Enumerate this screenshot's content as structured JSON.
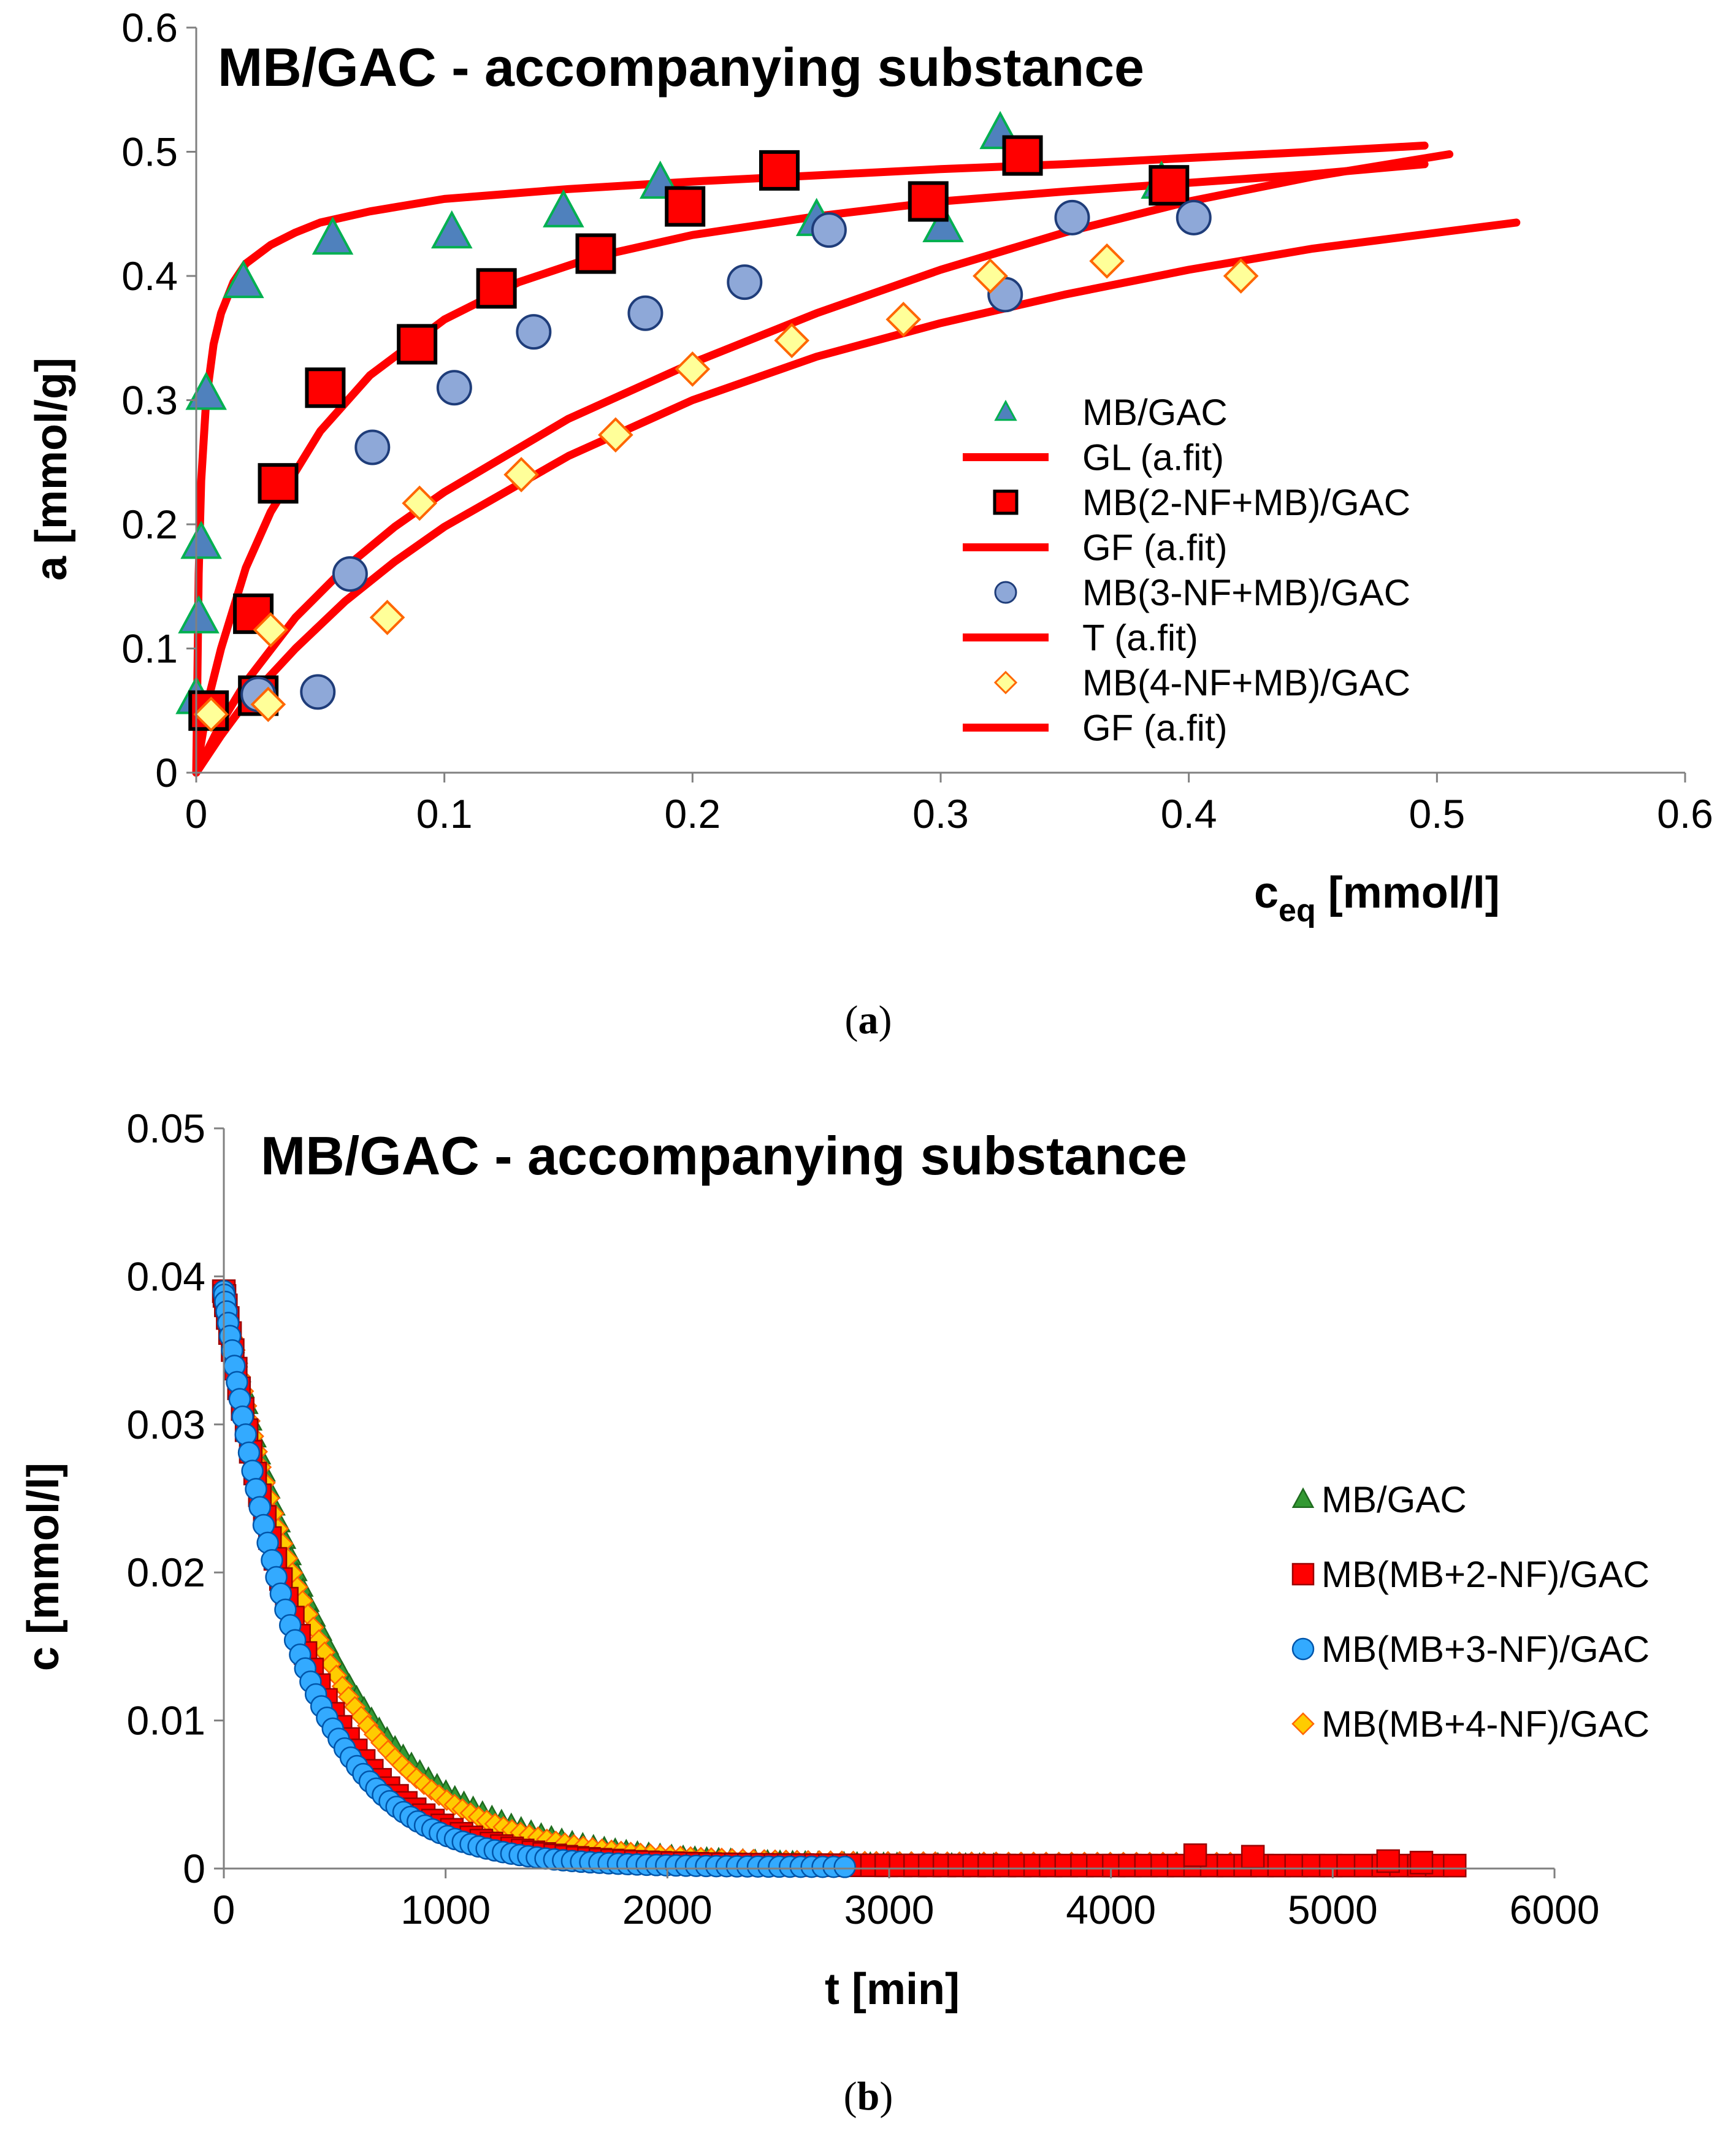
{
  "chart_data": [
    {
      "id": "a",
      "type": "scatter",
      "title": "MB/GAC - accompanying substance",
      "xlabel_main": "c",
      "xlabel_sub": "eq",
      "xlabel_unit": " [mmol/l]",
      "ylabel": "a [mmol/g]",
      "xlim": [
        0,
        0.6
      ],
      "ylim": [
        0,
        0.6
      ],
      "xticks": [
        "0",
        "0.1",
        "0.2",
        "0.3",
        "0.4",
        "0.5",
        "0.6"
      ],
      "yticks": [
        "0",
        "0.1",
        "0.2",
        "0.3",
        "0.4",
        "0.5",
        "0.6"
      ],
      "caption": "(a)",
      "caption_letter": "a",
      "legend_position": "center-right",
      "series": [
        {
          "name": "MB/GAC",
          "kind": "points",
          "marker": "triangle",
          "fill": "#4f81bd",
          "stroke": "#00b050",
          "x": [
            0,
            0.001,
            0.002,
            0.004,
            0.019,
            0.055,
            0.103,
            0.148,
            0.187,
            0.25,
            0.301,
            0.324,
            0.389
          ],
          "y": [
            0.06,
            0.125,
            0.185,
            0.305,
            0.395,
            0.43,
            0.435,
            0.452,
            0.475,
            0.445,
            0.44,
            0.515,
            0.475
          ]
        },
        {
          "name": "GL (a.fit)",
          "kind": "line",
          "stroke": "#ff0000",
          "x": [
            0,
            0.001,
            0.002,
            0.004,
            0.007,
            0.01,
            0.015,
            0.02,
            0.03,
            0.04,
            0.05,
            0.07,
            0.1,
            0.15,
            0.2,
            0.25,
            0.3,
            0.35,
            0.4,
            0.45,
            0.495
          ],
          "y": [
            0,
            0.16,
            0.235,
            0.3,
            0.345,
            0.37,
            0.395,
            0.41,
            0.425,
            0.435,
            0.443,
            0.452,
            0.462,
            0.47,
            0.476,
            0.481,
            0.486,
            0.49,
            0.495,
            0.5,
            0.505
          ]
        },
        {
          "name": "MB(2-NF+MB)/GAC",
          "kind": "points",
          "marker": "square",
          "fill": "#ff0000",
          "stroke": "#000000",
          "x": [
            0.005,
            0.023,
            0.025,
            0.033,
            0.052,
            0.089,
            0.121,
            0.161,
            0.197,
            0.235,
            0.295,
            0.333,
            0.392
          ],
          "y": [
            0.05,
            0.128,
            0.062,
            0.233,
            0.31,
            0.345,
            0.39,
            0.418,
            0.456,
            0.485,
            0.46,
            0.497,
            0.473
          ]
        },
        {
          "name": "GF (a.fit)",
          "kind": "line",
          "stroke": "#ff0000",
          "x": [
            0,
            0.005,
            0.01,
            0.02,
            0.03,
            0.05,
            0.07,
            0.1,
            0.13,
            0.16,
            0.2,
            0.25,
            0.3,
            0.35,
            0.4,
            0.45,
            0.495
          ],
          "y": [
            0,
            0.06,
            0.1,
            0.165,
            0.21,
            0.275,
            0.32,
            0.365,
            0.395,
            0.415,
            0.433,
            0.448,
            0.46,
            0.468,
            0.475,
            0.482,
            0.49
          ]
        },
        {
          "name": "MB(3-NF+MB)/GAC",
          "kind": "points",
          "marker": "circle",
          "fill": "#8ea8d8",
          "stroke": "#1f3d7a",
          "x": [
            0.025,
            0.049,
            0.062,
            0.071,
            0.104,
            0.136,
            0.181,
            0.221,
            0.255,
            0.326,
            0.353,
            0.402
          ],
          "y": [
            0.063,
            0.065,
            0.16,
            0.262,
            0.31,
            0.355,
            0.37,
            0.395,
            0.437,
            0.385,
            0.447,
            0.447
          ]
        },
        {
          "name": "T (a.fit)",
          "kind": "line",
          "stroke": "#ff0000",
          "x": [
            0,
            0.01,
            0.02,
            0.04,
            0.06,
            0.08,
            0.1,
            0.15,
            0.2,
            0.25,
            0.3,
            0.35,
            0.4,
            0.45,
            0.505
          ],
          "y": [
            0,
            0.04,
            0.073,
            0.125,
            0.165,
            0.198,
            0.226,
            0.285,
            0.33,
            0.37,
            0.405,
            0.435,
            0.46,
            0.48,
            0.498
          ]
        },
        {
          "name": "MB(4-NF+MB)/GAC",
          "kind": "points",
          "marker": "diamond",
          "fill": "#ffff99",
          "stroke": "#ff6600",
          "x": [
            0.006,
            0.029,
            0.03,
            0.077,
            0.09,
            0.131,
            0.169,
            0.2,
            0.24,
            0.285,
            0.32,
            0.367,
            0.421
          ],
          "y": [
            0.047,
            0.055,
            0.115,
            0.125,
            0.217,
            0.24,
            0.272,
            0.325,
            0.348,
            0.365,
            0.4,
            0.412,
            0.4
          ]
        },
        {
          "name": "GF (a.fit)",
          "kind": "line",
          "stroke": "#ff0000",
          "x": [
            0,
            0.01,
            0.02,
            0.04,
            0.06,
            0.08,
            0.1,
            0.15,
            0.2,
            0.25,
            0.3,
            0.35,
            0.4,
            0.45,
            0.532
          ],
          "y": [
            0,
            0.03,
            0.057,
            0.1,
            0.138,
            0.17,
            0.198,
            0.255,
            0.3,
            0.335,
            0.362,
            0.385,
            0.405,
            0.422,
            0.443
          ]
        }
      ]
    },
    {
      "id": "b",
      "type": "scatter",
      "title": "MB/GAC - accompanying substance",
      "xlabel": "t [min]",
      "ylabel": "c [mmol/l]",
      "xlim": [
        0,
        6000
      ],
      "ylim": [
        0,
        0.05
      ],
      "xticks": [
        "0",
        "1000",
        "2000",
        "3000",
        "4000",
        "5000",
        "6000"
      ],
      "yticks": [
        "0",
        "0.01",
        "0.02",
        "0.03",
        "0.04",
        "0.05"
      ],
      "caption": "(b)",
      "caption_letter": "b",
      "legend_position": "center-right",
      "series": [
        {
          "name": "MB/GAC",
          "marker": "triangle",
          "fill": "#339933",
          "stroke": "#1f6b1f",
          "model": {
            "c0": 0.039,
            "k": 0.00205,
            "floor": 0.0003,
            "t_end": 3600,
            "n": 90
          }
        },
        {
          "name": "MB(MB+2-NF)/GAC",
          "marker": "square",
          "fill": "#ff0000",
          "stroke": "#990000",
          "model": {
            "c0": 0.039,
            "k": 0.0027,
            "floor": 0.0002,
            "t_end": 5550,
            "n": 110
          },
          "extra_x": [
            4380,
            4640,
            5250,
            5400
          ],
          "extra_y": [
            0.0009,
            0.0008,
            0.0005,
            0.0004
          ]
        },
        {
          "name": "MB(MB+3-NF)/GAC",
          "marker": "circle",
          "fill": "#33aaff",
          "stroke": "#0055aa",
          "model": {
            "c0": 0.039,
            "k": 0.0029,
            "floor": 0.0001,
            "t_end": 2800,
            "n": 90
          }
        },
        {
          "name": "MB(MB+4-NF)/GAC",
          "marker": "diamond",
          "fill": "#ffcc00",
          "stroke": "#ff6600",
          "model": {
            "c0": 0.039,
            "k": 0.0022,
            "floor": 0.0004,
            "t_end": 4600,
            "n": 120
          }
        }
      ]
    }
  ]
}
